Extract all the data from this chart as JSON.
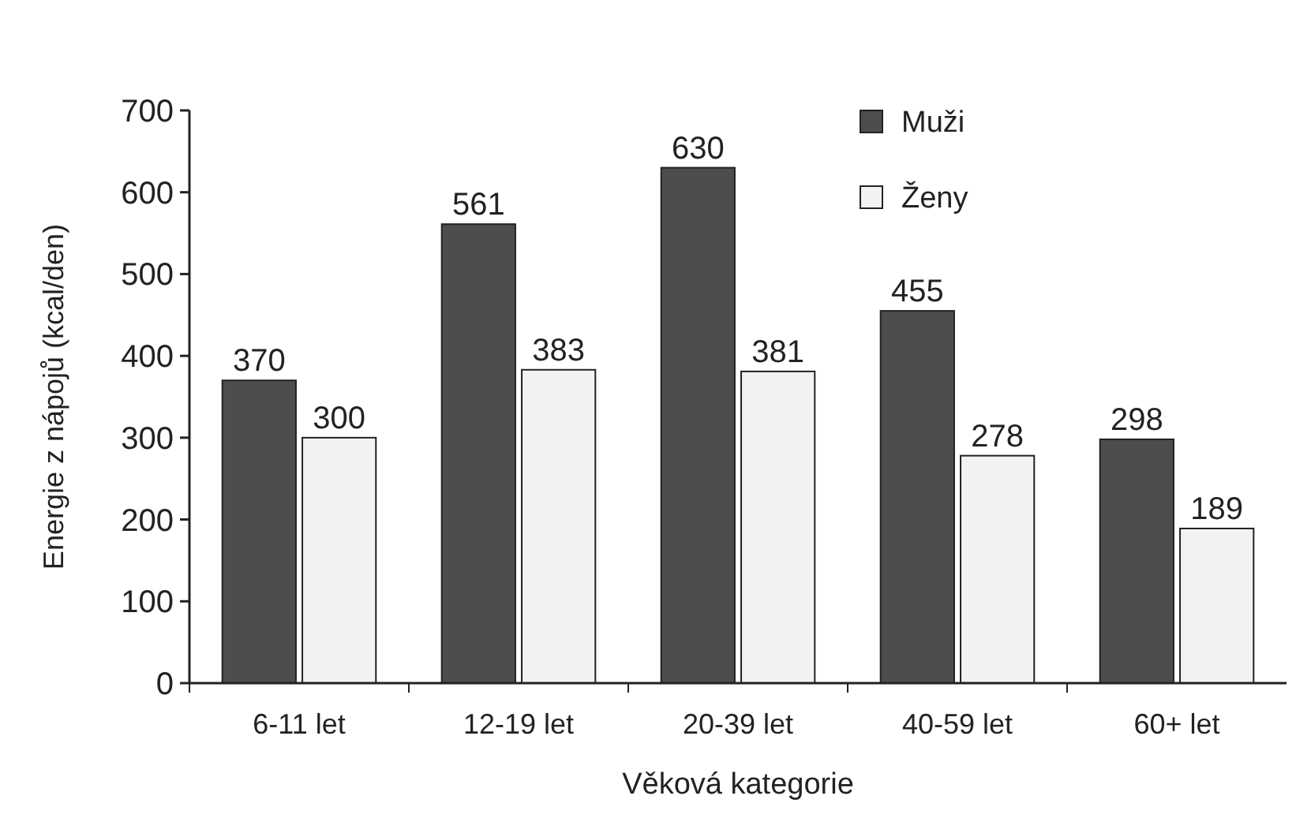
{
  "chart_data": {
    "type": "bar",
    "xlabel": "Věková kategorie",
    "ylabel": "Energie z nápojů (kcal/den)",
    "categories": [
      "6-11 let",
      "12-19 let",
      "20-39 let",
      "40-59 let",
      "60+ let"
    ],
    "series": [
      {
        "name": "Muži",
        "color": "#4d4d4d",
        "values": [
          370,
          561,
          630,
          455,
          298
        ]
      },
      {
        "name": "Ženy",
        "color": "#f2f2f2",
        "values": [
          300,
          383,
          381,
          278,
          189
        ]
      }
    ],
    "ylim": [
      0,
      700
    ],
    "yticks": [
      0,
      100,
      200,
      300,
      400,
      500,
      600,
      700
    ],
    "data_labels": true,
    "legend": "top right",
    "grid": false
  }
}
